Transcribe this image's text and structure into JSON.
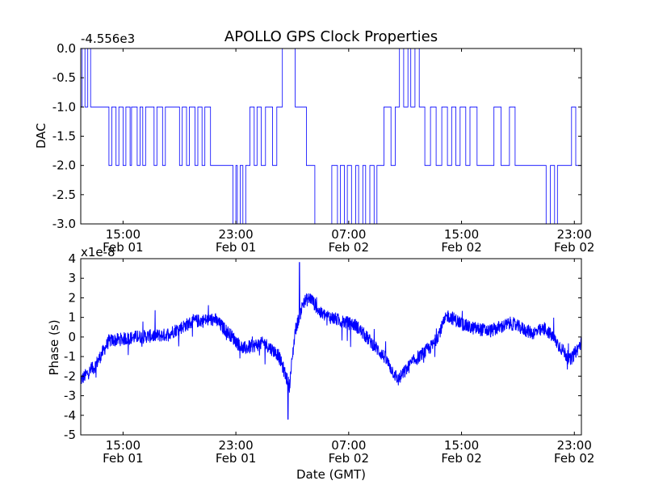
{
  "title": "APOLLO GPS Clock Properties",
  "colors": {
    "series": "#0000ff",
    "axes": "#000000",
    "background": "#ffffff"
  },
  "chart_data": [
    {
      "type": "line",
      "ylabel": "DAC",
      "xlabel": "",
      "y_offset_label": "-4.556e3",
      "ylim": [
        -3.0,
        0.0
      ],
      "yticks": [
        "0.0",
        "-0.5",
        "-1.0",
        "-1.5",
        "-2.0",
        "-2.5",
        "-3.0"
      ],
      "ytick_values": [
        0.0,
        -0.5,
        -1.0,
        -1.5,
        -2.0,
        -2.5,
        -3.0
      ],
      "xlim_hours": [
        12.0,
        47.5
      ],
      "xticks": [
        {
          "time": "15:00",
          "date": "Feb 01",
          "hours": 15
        },
        {
          "time": "23:00",
          "date": "Feb 01",
          "hours": 23
        },
        {
          "time": "07:00",
          "date": "Feb 02",
          "hours": 31
        },
        {
          "time": "15:00",
          "date": "Feb 02",
          "hours": 39
        },
        {
          "time": "23:00",
          "date": "Feb 02",
          "hours": 47
        }
      ],
      "step_series": [
        [
          12.0,
          -1.0
        ],
        [
          12.1,
          0.0
        ],
        [
          12.3,
          -1.0
        ],
        [
          12.5,
          0.0
        ],
        [
          12.7,
          -1.0
        ],
        [
          14.0,
          -2.0
        ],
        [
          14.2,
          -1.0
        ],
        [
          14.5,
          -2.0
        ],
        [
          14.7,
          -1.0
        ],
        [
          15.0,
          -2.0
        ],
        [
          15.2,
          -1.0
        ],
        [
          15.5,
          -2.0
        ],
        [
          15.6,
          -1.0
        ],
        [
          16.0,
          -2.0
        ],
        [
          16.2,
          -1.0
        ],
        [
          16.4,
          -2.0
        ],
        [
          16.6,
          -1.0
        ],
        [
          17.2,
          -2.0
        ],
        [
          17.4,
          -1.0
        ],
        [
          17.8,
          -2.0
        ],
        [
          18.0,
          -1.0
        ],
        [
          19.0,
          -2.0
        ],
        [
          19.2,
          -1.0
        ],
        [
          19.5,
          -2.0
        ],
        [
          19.7,
          -1.0
        ],
        [
          20.1,
          -2.0
        ],
        [
          20.3,
          -1.0
        ],
        [
          20.6,
          -2.0
        ],
        [
          20.8,
          -1.0
        ],
        [
          21.2,
          -2.0
        ],
        [
          22.8,
          -3.0
        ],
        [
          23.0,
          -2.0
        ],
        [
          23.1,
          -3.0
        ],
        [
          23.3,
          -2.0
        ],
        [
          23.5,
          -3.0
        ],
        [
          23.7,
          -2.0
        ],
        [
          24.0,
          -1.0
        ],
        [
          24.3,
          -2.0
        ],
        [
          24.5,
          -1.0
        ],
        [
          24.8,
          -2.0
        ],
        [
          25.1,
          -1.0
        ],
        [
          25.6,
          -2.0
        ],
        [
          25.9,
          -1.0
        ],
        [
          26.3,
          0.0
        ],
        [
          27.2,
          -1.0
        ],
        [
          28.0,
          -2.0
        ],
        [
          28.6,
          -3.0
        ],
        [
          29.8,
          -2.0
        ],
        [
          30.2,
          -3.0
        ],
        [
          30.4,
          -2.0
        ],
        [
          30.7,
          -3.0
        ],
        [
          30.9,
          -2.0
        ],
        [
          31.2,
          -3.0
        ],
        [
          31.5,
          -2.0
        ],
        [
          31.7,
          -3.0
        ],
        [
          32.0,
          -2.0
        ],
        [
          32.2,
          -3.0
        ],
        [
          32.5,
          -2.0
        ],
        [
          32.8,
          -3.0
        ],
        [
          33.0,
          -2.0
        ],
        [
          33.5,
          -1.0
        ],
        [
          34.0,
          -2.0
        ],
        [
          34.3,
          -1.0
        ],
        [
          34.6,
          0.0
        ],
        [
          34.9,
          -1.0
        ],
        [
          35.2,
          0.0
        ],
        [
          35.4,
          -1.0
        ],
        [
          35.7,
          0.0
        ],
        [
          36.0,
          -1.0
        ],
        [
          36.4,
          -2.0
        ],
        [
          36.8,
          -1.0
        ],
        [
          37.2,
          -2.0
        ],
        [
          37.6,
          -1.0
        ],
        [
          38.0,
          -2.0
        ],
        [
          38.3,
          -1.0
        ],
        [
          38.6,
          -2.0
        ],
        [
          38.9,
          -1.0
        ],
        [
          39.3,
          -2.0
        ],
        [
          39.6,
          -1.0
        ],
        [
          40.1,
          -2.0
        ],
        [
          41.3,
          -1.0
        ],
        [
          41.8,
          -2.0
        ],
        [
          42.4,
          -1.0
        ],
        [
          42.8,
          -2.0
        ],
        [
          45.0,
          -3.0
        ],
        [
          45.3,
          -2.0
        ],
        [
          45.6,
          -3.0
        ],
        [
          45.8,
          -2.0
        ],
        [
          46.8,
          -1.0
        ],
        [
          47.1,
          -2.0
        ],
        [
          47.5,
          -2.0
        ]
      ]
    },
    {
      "type": "line",
      "ylabel": "Phase (s)",
      "xlabel": "Date (GMT)",
      "y_offset_label": "x1e-8",
      "ylim": [
        -5,
        4
      ],
      "yticks": [
        "4",
        "3",
        "2",
        "1",
        "0",
        "-1",
        "-2",
        "-3",
        "-4",
        "-5"
      ],
      "ytick_values": [
        4,
        3,
        2,
        1,
        0,
        -1,
        -2,
        -3,
        -4,
        -5
      ],
      "xlim_hours": [
        12.0,
        47.5
      ],
      "xticks": [
        {
          "time": "15:00",
          "date": "Feb 01",
          "hours": 15
        },
        {
          "time": "23:00",
          "date": "Feb 01",
          "hours": 23
        },
        {
          "time": "07:00",
          "date": "Feb 02",
          "hours": 31
        },
        {
          "time": "15:00",
          "date": "Feb 02",
          "hours": 39
        },
        {
          "time": "23:00",
          "date": "Feb 02",
          "hours": 47
        }
      ],
      "trend": [
        [
          12.0,
          -2.2
        ],
        [
          13.0,
          -1.5
        ],
        [
          14.0,
          -0.2
        ],
        [
          16.0,
          0.0
        ],
        [
          18.0,
          0.1
        ],
        [
          20.0,
          0.8
        ],
        [
          21.5,
          0.9
        ],
        [
          22.5,
          0.2
        ],
        [
          23.5,
          -0.6
        ],
        [
          25.0,
          -0.3
        ],
        [
          26.0,
          -0.9
        ],
        [
          26.8,
          -2.5
        ],
        [
          27.2,
          0.3
        ],
        [
          27.8,
          1.8
        ],
        [
          28.3,
          2.0
        ],
        [
          29.0,
          1.2
        ],
        [
          30.5,
          0.8
        ],
        [
          31.5,
          0.6
        ],
        [
          32.5,
          -0.2
        ],
        [
          33.5,
          -1.0
        ],
        [
          34.5,
          -2.2
        ],
        [
          35.5,
          -1.3
        ],
        [
          37.0,
          -0.4
        ],
        [
          38.0,
          1.1
        ],
        [
          39.5,
          0.5
        ],
        [
          41.0,
          0.3
        ],
        [
          42.5,
          0.7
        ],
        [
          44.0,
          0.2
        ],
        [
          45.0,
          0.4
        ],
        [
          46.0,
          -0.5
        ],
        [
          46.7,
          -1.2
        ],
        [
          47.5,
          -0.3
        ]
      ],
      "noise_amplitude": 0.35,
      "extremes": {
        "max": 3.8,
        "max_at": 27.5,
        "min": -4.2,
        "min_at": 26.7
      }
    }
  ]
}
